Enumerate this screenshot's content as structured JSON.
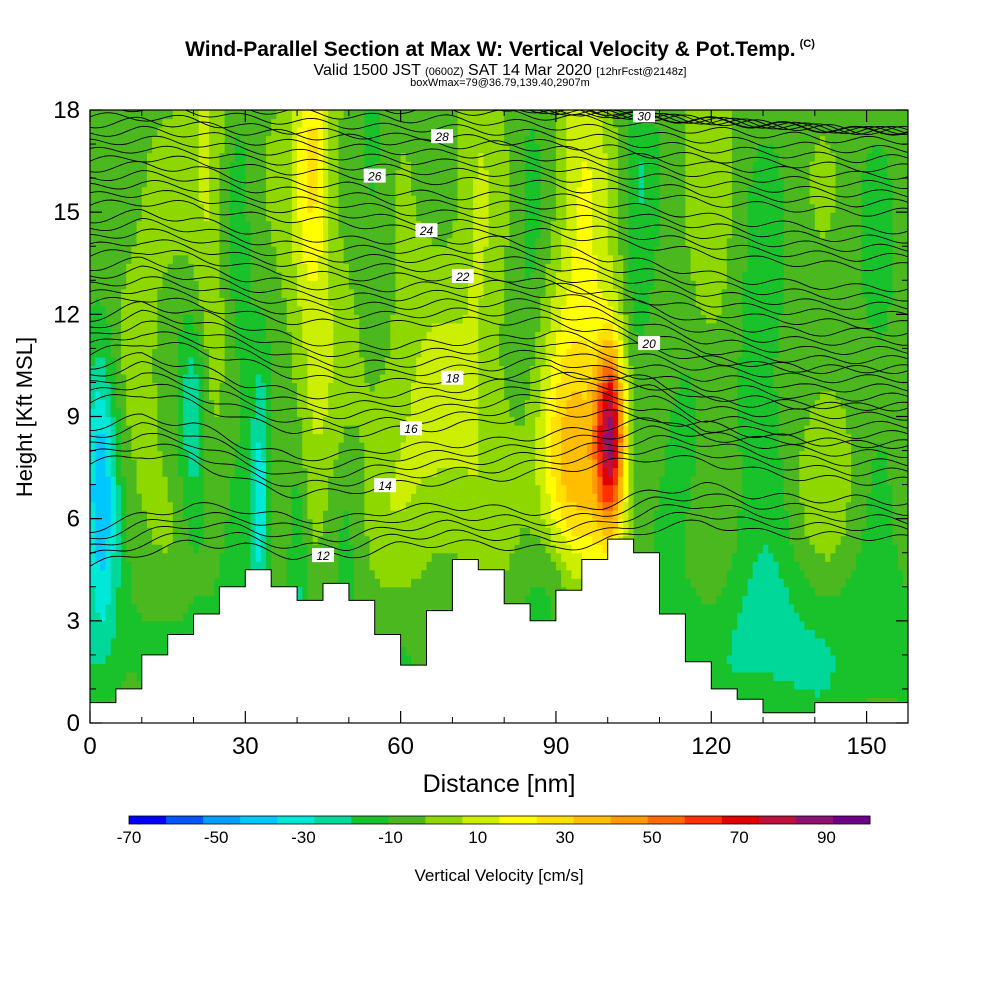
{
  "header": {
    "title": "Wind-Parallel Section at Max W: Vertical Velocity & Pot.Temp.",
    "copyright": "(C)",
    "valid_main": "Valid 1500 JST",
    "valid_small": "(0600Z)",
    "valid_date": "SAT 14 Mar 2020",
    "forecast": "[12hrFcst@2148z]",
    "box_info": "boxWmax=79@36.79,139.40,2907m"
  },
  "chart_data": {
    "type": "heatmap",
    "xlabel": "Distance [nm]",
    "ylabel": "Height [Kft MSL]",
    "xlim": [
      0,
      158
    ],
    "ylim": [
      0,
      18
    ],
    "xticks": [
      0,
      30,
      60,
      90,
      120,
      150
    ],
    "yticks": [
      0,
      3,
      6,
      9,
      12,
      15,
      18
    ],
    "colorbar": {
      "label": "Vertical Velocity [cm/s]",
      "min": -70,
      "max": 100,
      "step": 10,
      "tick_values": [
        -70,
        -50,
        -30,
        -10,
        10,
        30,
        50,
        70,
        90
      ],
      "colors": [
        "#0000ff",
        "#0055ff",
        "#00a0ff",
        "#00c8ff",
        "#00e8d8",
        "#00d89a",
        "#19c22a",
        "#4ab81e",
        "#8ed800",
        "#ccee00",
        "#ffff00",
        "#ffe000",
        "#ffbf00",
        "#ff9a00",
        "#ff6a00",
        "#ff3000",
        "#e00000",
        "#c0103e",
        "#901070",
        "#6e0088"
      ]
    },
    "terrain": [
      [
        0,
        0.6
      ],
      [
        5,
        1.0
      ],
      [
        10,
        2.0
      ],
      [
        15,
        2.6
      ],
      [
        20,
        3.2
      ],
      [
        25,
        4.0
      ],
      [
        30,
        4.5
      ],
      [
        35,
        4.0
      ],
      [
        40,
        3.6
      ],
      [
        45,
        4.1
      ],
      [
        50,
        3.6
      ],
      [
        55,
        2.6
      ],
      [
        60,
        1.7
      ],
      [
        65,
        3.3
      ],
      [
        70,
        4.8
      ],
      [
        75,
        4.5
      ],
      [
        80,
        3.5
      ],
      [
        85,
        3.0
      ],
      [
        90,
        3.9
      ],
      [
        95,
        4.8
      ],
      [
        100,
        5.4
      ],
      [
        105,
        5.0
      ],
      [
        110,
        3.2
      ],
      [
        115,
        1.8
      ],
      [
        120,
        1.0
      ],
      [
        125,
        0.7
      ],
      [
        130,
        0.3
      ],
      [
        135,
        0.3
      ],
      [
        140,
        0.6
      ],
      [
        150,
        0.6
      ],
      [
        158,
        0.6
      ]
    ],
    "isentropes": [
      {
        "label": "12",
        "z": [
          4.6,
          5.0,
          5.3,
          5.2,
          4.9,
          4.9,
          5.2,
          5.3,
          5.2,
          5.1,
          5.3,
          5.7,
          5.9,
          5.6,
          5.5,
          5.5,
          5.4
        ],
        "label_x": 45
      },
      {
        "label": "14",
        "z": [
          7.6,
          7.9,
          7.7,
          7.1,
          6.7,
          6.8,
          7.0,
          7.1,
          7.2,
          7.4,
          7.6,
          7.8,
          7.7,
          7.4,
          7.2,
          7.1,
          7.1
        ],
        "label_x": 57
      },
      {
        "label": "16",
        "z": [
          9.4,
          9.7,
          9.4,
          8.9,
          8.6,
          8.5,
          8.6,
          8.7,
          8.9,
          9.1,
          9.1,
          9.0,
          8.4,
          8.3,
          8.3,
          8.2,
          8.2
        ],
        "label_x": 62
      },
      {
        "label": "18",
        "z": [
          10.8,
          11.2,
          11.0,
          10.6,
          10.2,
          10.0,
          10.0,
          10.1,
          10.2,
          10.4,
          10.1,
          9.9,
          9.6,
          9.5,
          9.3,
          9.3,
          9.3
        ],
        "label_x": 70
      },
      {
        "label": "20",
        "z": [
          12.3,
          12.5,
          12.3,
          12.0,
          11.8,
          11.7,
          11.7,
          11.8,
          11.8,
          11.8,
          11.5,
          11.1,
          10.7,
          10.5,
          10.4,
          10.4,
          10.4
        ],
        "label_x": 108
      },
      {
        "label": "22",
        "z": [
          13.7,
          13.9,
          13.7,
          13.4,
          13.2,
          13.1,
          13.1,
          13.1,
          13.1,
          12.9,
          12.6,
          12.4,
          12.1,
          11.9,
          11.8,
          11.7,
          11.7
        ],
        "label_x": 72
      },
      {
        "label": "24",
        "z": [
          15.2,
          15.3,
          15.2,
          14.9,
          14.8,
          14.7,
          14.5,
          14.4,
          14.4,
          14.4,
          14.2,
          14.0,
          13.8,
          13.6,
          13.5,
          13.4,
          13.4
        ],
        "label_x": 65
      },
      {
        "label": "26",
        "z": [
          16.5,
          16.6,
          16.5,
          16.3,
          16.2,
          16.1,
          16.0,
          15.9,
          15.9,
          15.8,
          15.6,
          15.5,
          15.3,
          15.2,
          15.1,
          15.0,
          15.0
        ],
        "label_x": 55
      },
      {
        "label": "28",
        "z": [
          17.8,
          17.8,
          17.7,
          17.5,
          17.4,
          17.3,
          17.2,
          17.2,
          17.1,
          17.0,
          16.9,
          16.7,
          16.6,
          16.5,
          16.4,
          16.3,
          16.3
        ],
        "label_x": 68
      },
      {
        "label": "30",
        "z": [
          18.6,
          18.6,
          18.5,
          18.4,
          18.3,
          18.3,
          18.2,
          18.2,
          18.1,
          18.0,
          17.9,
          17.8,
          17.7,
          17.6,
          17.5,
          17.4,
          17.4
        ],
        "label_x": 107
      }
    ],
    "w_features": [
      {
        "x": 100.5,
        "z": 8.5,
        "sx": 2.0,
        "sz": 1.9,
        "amp": 92
      },
      {
        "x": 93,
        "z": 7.3,
        "sx": 4.5,
        "sz": 2.6,
        "amp": 38
      },
      {
        "x": 96,
        "z": 10.5,
        "sx": 6.0,
        "sz": 4.5,
        "amp": 12
      },
      {
        "x": 43,
        "z": 16.5,
        "sx": 2.5,
        "sz": 2.4,
        "amp": 28
      },
      {
        "x": 43,
        "z": 12.0,
        "sx": 3.0,
        "sz": 5.5,
        "amp": 12
      },
      {
        "x": 95,
        "z": 16.0,
        "sx": 3.0,
        "sz": 4.5,
        "amp": 16
      },
      {
        "x": 23,
        "z": 15.5,
        "sx": 3.0,
        "sz": 5.0,
        "amp": 16
      },
      {
        "x": 65,
        "z": 8.5,
        "sx": 11.0,
        "sz": 3.5,
        "amp": 14
      },
      {
        "x": 10,
        "z": 10.5,
        "sx": 3.0,
        "sz": 3.5,
        "amp": 6
      },
      {
        "x": 120,
        "z": 13.0,
        "sx": 3.0,
        "sz": 5.5,
        "amp": 10
      },
      {
        "x": 142,
        "z": 7.5,
        "sx": 5.0,
        "sz": 2.5,
        "amp": 10
      },
      {
        "x": 75,
        "z": 15.5,
        "sx": 2.5,
        "sz": 5.0,
        "amp": 10
      },
      {
        "x": 2,
        "z": 7.0,
        "sx": 2.5,
        "sz": 3.0,
        "amp": -45
      },
      {
        "x": 20,
        "z": 9.0,
        "sx": 2.0,
        "sz": 2.5,
        "amp": -28
      },
      {
        "x": 33,
        "z": 6.5,
        "sx": 1.5,
        "sz": 3.0,
        "amp": -32
      },
      {
        "x": 40,
        "z": 5.0,
        "sx": 1.5,
        "sz": 2.5,
        "amp": -20
      },
      {
        "x": 28,
        "z": 12.5,
        "sx": 2.5,
        "sz": 5.0,
        "amp": -14
      },
      {
        "x": 55,
        "z": 16.0,
        "sx": 2.5,
        "sz": 4.0,
        "amp": -12
      },
      {
        "x": 85,
        "z": 13.5,
        "sx": 2.5,
        "sz": 4.5,
        "amp": -12
      },
      {
        "x": 106,
        "z": 15.5,
        "sx": 2.5,
        "sz": 5.0,
        "amp": -18
      },
      {
        "x": 115,
        "z": 8.5,
        "sx": 4.0,
        "sz": 2.5,
        "amp": -13
      },
      {
        "x": 130,
        "z": 10.0,
        "sx": 5.0,
        "sz": 5.0,
        "amp": -14
      },
      {
        "x": 152,
        "z": 11.0,
        "sx": 4.0,
        "sz": 4.5,
        "amp": -12
      },
      {
        "x": 135,
        "z": 2.5,
        "sx": 12.0,
        "sz": 2.0,
        "amp": -10
      },
      {
        "x": 90,
        "z": 4.2,
        "sx": 4.0,
        "sz": 1.2,
        "amp": -12
      },
      {
        "x": 50,
        "z": 6.5,
        "sx": 2.5,
        "sz": 2.0,
        "amp": -10
      }
    ]
  }
}
